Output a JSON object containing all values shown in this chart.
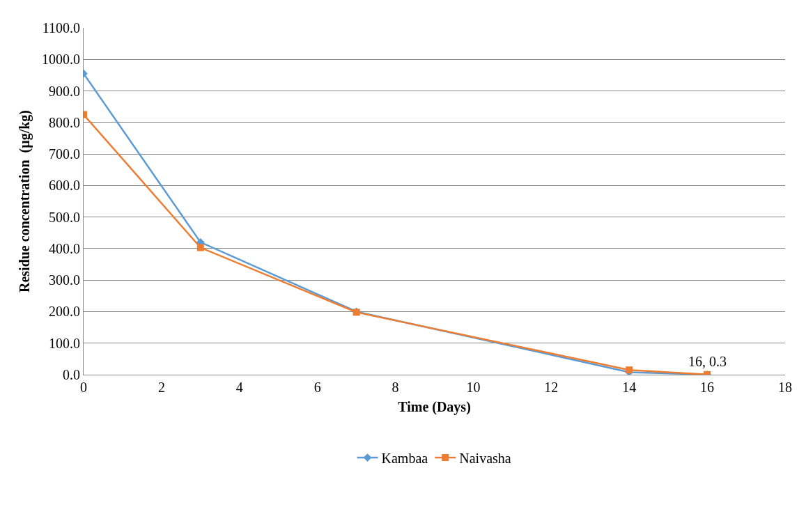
{
  "chart_data": {
    "type": "line",
    "xlabel": "Time (Days)",
    "ylabel": "Residue concentration  (µg/kg)",
    "x": [
      0,
      3,
      7,
      14,
      16
    ],
    "series": [
      {
        "name": "Kambaa",
        "color": "#5b9bd5",
        "marker": "diamond",
        "values": [
          955,
          420,
          200,
          8,
          0.3
        ]
      },
      {
        "name": "Naivasha",
        "color": "#ed7d31",
        "marker": "square",
        "values": [
          825,
          403,
          198,
          15,
          0.3
        ]
      }
    ],
    "xlim": [
      0,
      18
    ],
    "xticks": [
      0,
      2,
      4,
      6,
      8,
      10,
      12,
      14,
      16,
      18
    ],
    "ylim": [
      0,
      1100
    ],
    "yticks": [
      {
        "value": 0,
        "label": "0.0"
      },
      {
        "value": 100,
        "label": "100.0"
      },
      {
        "value": 200,
        "label": "200.0"
      },
      {
        "value": 300,
        "label": "300.0"
      },
      {
        "value": 400,
        "label": "400.0"
      },
      {
        "value": 500,
        "label": "500.0"
      },
      {
        "value": 600,
        "label": "600.0"
      },
      {
        "value": 700,
        "label": "700.0"
      },
      {
        "value": 800,
        "label": "800.0"
      },
      {
        "value": 900,
        "label": "900.0"
      },
      {
        "value": 1000,
        "label": "1000.0"
      },
      {
        "value": 1100,
        "label": "1100.0"
      }
    ],
    "annotations": [
      {
        "text": "16, 0.3",
        "x": 16,
        "y": 0.3
      }
    ],
    "grid": "y",
    "legend": "bottom",
    "line_style": "solid"
  }
}
